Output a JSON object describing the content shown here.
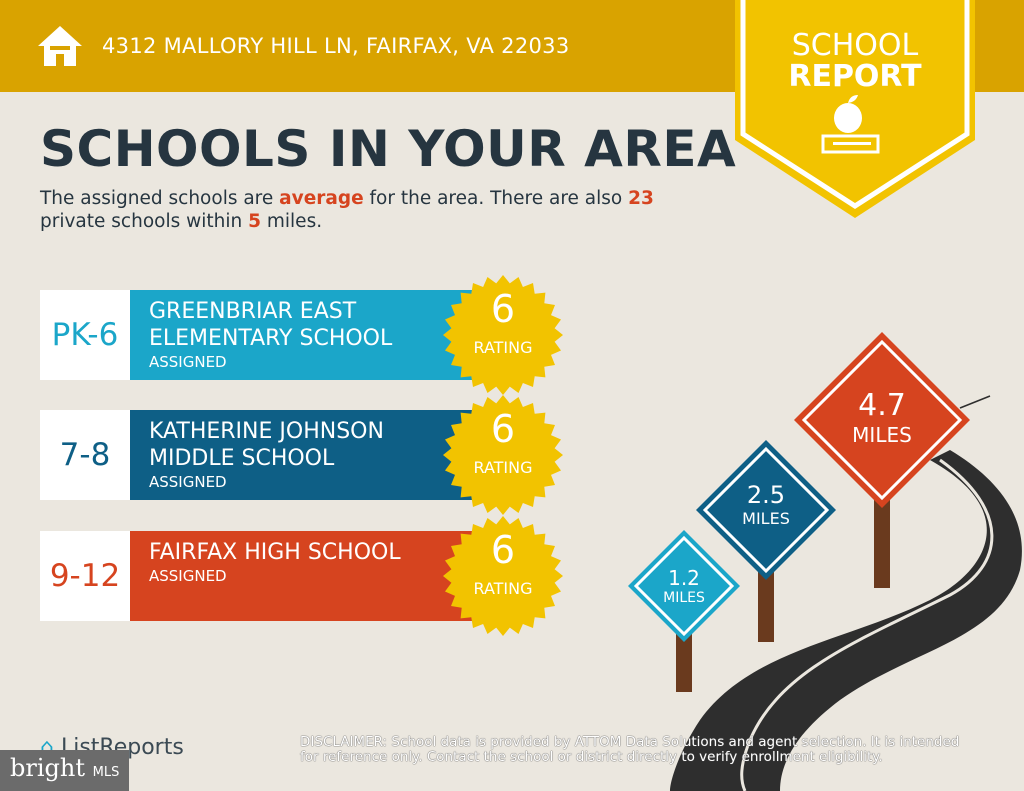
{
  "header": {
    "address": "4312 MALLORY HILL LN, FAIRFAX, VA 22033",
    "icon": "home-icon"
  },
  "badge": {
    "line1": "SCHOOL",
    "line2": "REPORT",
    "icon": "apple-on-book-icon"
  },
  "title": "SCHOOLS IN YOUR AREA",
  "summary": {
    "p1": "The assigned schools are ",
    "quality": "average",
    "p2": " for the area. There are also ",
    "count": "23",
    "p3": " private schools within ",
    "radius": "5",
    "p4": " miles."
  },
  "schools": [
    {
      "grade": "PK-6",
      "name1": "GREENBRIAR EAST",
      "name2": "ELEMENTARY SCHOOL",
      "status": "ASSIGNED",
      "rating": "6",
      "rating_label": "RATING",
      "color": "#1ba6c9",
      "grade_color": "#1ba6c9"
    },
    {
      "grade": "7-8",
      "name1": "KATHERINE JOHNSON",
      "name2": "MIDDLE SCHOOL",
      "status": "ASSIGNED",
      "rating": "6",
      "rating_label": "RATING",
      "color": "#0e5f86",
      "grade_color": "#0e5f86"
    },
    {
      "grade": "9-12",
      "name1": "FAIRFAX HIGH SCHOOL",
      "name2": "",
      "status": "ASSIGNED",
      "rating": "6",
      "rating_label": "RATING",
      "color": "#d6441f",
      "grade_color": "#d6441f"
    }
  ],
  "signs": [
    {
      "distance": "1.2",
      "unit": "MILES",
      "color": "#1ba6c9"
    },
    {
      "distance": "2.5",
      "unit": "MILES",
      "color": "#0e5f86"
    },
    {
      "distance": "4.7",
      "unit": "MILES",
      "color": "#d6441f"
    }
  ],
  "footer": {
    "logo": "ListReports",
    "watermark_brand": "bright",
    "watermark_suffix": "MLS",
    "disclaimer_label": "DISCLAIMER:",
    "disclaimer": " School data is provided by ATTOM Data Solutions and agent selection. It is intended for reference only. Contact the school or district directly to verify enrollment eligibility."
  }
}
